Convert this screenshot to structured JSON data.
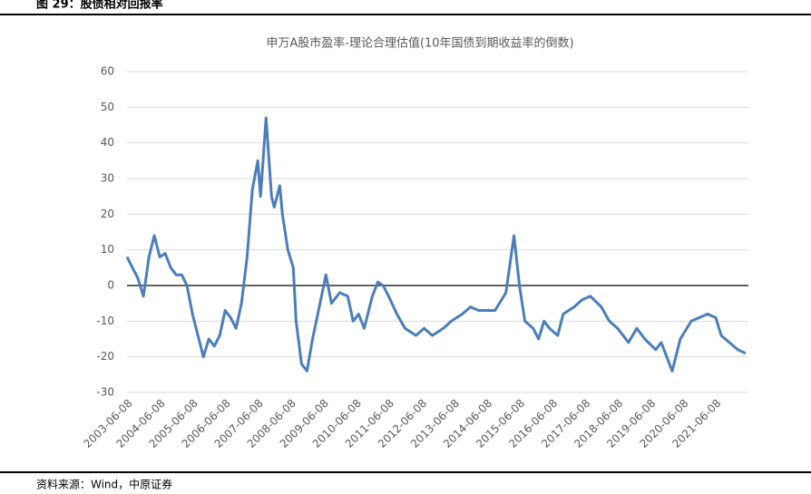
{
  "header": {
    "title": "图 29：股债相对回报率"
  },
  "chart_data": {
    "type": "line",
    "title": "申万A股市盈率-理论合理估值(10年国债到期收益率的倒数)",
    "x": [
      "2003-06-08",
      "2003-08-08",
      "2003-10-08",
      "2003-12-08",
      "2004-02-08",
      "2004-04-08",
      "2004-06-08",
      "2004-08-08",
      "2004-10-08",
      "2004-12-08",
      "2005-02-08",
      "2005-04-08",
      "2005-06-08",
      "2005-08-08",
      "2005-10-08",
      "2005-12-08",
      "2006-02-08",
      "2006-04-08",
      "2006-06-08",
      "2006-08-08",
      "2006-10-08",
      "2006-12-08",
      "2007-02-08",
      "2007-04-08",
      "2007-06-08",
      "2007-07-08",
      "2007-09-08",
      "2007-11-08",
      "2007-12-08",
      "2008-02-08",
      "2008-03-08",
      "2008-05-08",
      "2008-07-08",
      "2008-08-08",
      "2008-10-08",
      "2008-12-08",
      "2009-02-08",
      "2009-04-08",
      "2009-07-08",
      "2009-09-08",
      "2009-12-08",
      "2010-03-08",
      "2010-05-08",
      "2010-07-08",
      "2010-09-08",
      "2010-12-08",
      "2011-02-08",
      "2011-04-08",
      "2011-06-08",
      "2011-09-08",
      "2011-12-08",
      "2012-04-08",
      "2012-07-08",
      "2012-10-08",
      "2013-02-08",
      "2013-05-08",
      "2013-09-08",
      "2013-12-08",
      "2014-03-08",
      "2014-07-08",
      "2014-09-08",
      "2015-01-08",
      "2015-04-08",
      "2015-06-08",
      "2015-08-08",
      "2015-11-08",
      "2016-01-08",
      "2016-03-08",
      "2016-05-08",
      "2016-08-08",
      "2016-10-08",
      "2017-02-08",
      "2017-05-08",
      "2017-08-08",
      "2017-12-08",
      "2018-03-08",
      "2018-06-08",
      "2018-10-08",
      "2019-01-08",
      "2019-04-08",
      "2019-08-08",
      "2019-10-08",
      "2020-02-08",
      "2020-05-08",
      "2020-09-08",
      "2020-12-08",
      "2021-03-08",
      "2021-06-08",
      "2021-08-08",
      "2021-11-08",
      "2022-02-08",
      "2022-05-08"
    ],
    "values": [
      8,
      5,
      2,
      -3,
      8,
      14,
      8,
      9,
      5,
      3,
      3,
      0,
      -8,
      -14,
      -20,
      -15,
      -17,
      -14,
      -7,
      -9,
      -12,
      -5,
      8,
      27,
      35,
      25,
      47,
      25,
      22,
      28,
      20,
      10,
      5,
      -10,
      -22,
      -24,
      -15,
      -8,
      3,
      -5,
      -2,
      -3,
      -10,
      -8,
      -12,
      -3,
      1,
      0,
      -3,
      -8,
      -12,
      -14,
      -12,
      -14,
      -12,
      -10,
      -8,
      -6,
      -7,
      -7,
      -7,
      -2,
      14,
      0,
      -10,
      -12,
      -15,
      -10,
      -12,
      -14,
      -8,
      -6,
      -4,
      -3,
      -6,
      -10,
      -12,
      -16,
      -12,
      -15,
      -18,
      -16,
      -24,
      -15,
      -10,
      -9,
      -8,
      -9,
      -14,
      -16,
      -18,
      -19
    ],
    "color": "#4a7ebb",
    "xlim": [
      "2003-06-08",
      "2022-06-08"
    ],
    "xticks": [
      "2003-06-08",
      "2004-06-08",
      "2005-06-08",
      "2006-06-08",
      "2007-06-08",
      "2008-06-08",
      "2009-06-08",
      "2010-06-08",
      "2011-06-08",
      "2012-06-08",
      "2013-06-08",
      "2014-06-08",
      "2015-06-08",
      "2016-06-08",
      "2017-06-08",
      "2018-06-08",
      "2019-06-08",
      "2020-06-08",
      "2021-06-08"
    ],
    "ylim": [
      -30,
      60
    ],
    "yticks": [
      -30,
      -20,
      -10,
      0,
      10,
      20,
      30,
      40,
      50,
      60
    ],
    "grid": true
  },
  "footer": {
    "source": "资料来源：Wind，中原证券"
  }
}
